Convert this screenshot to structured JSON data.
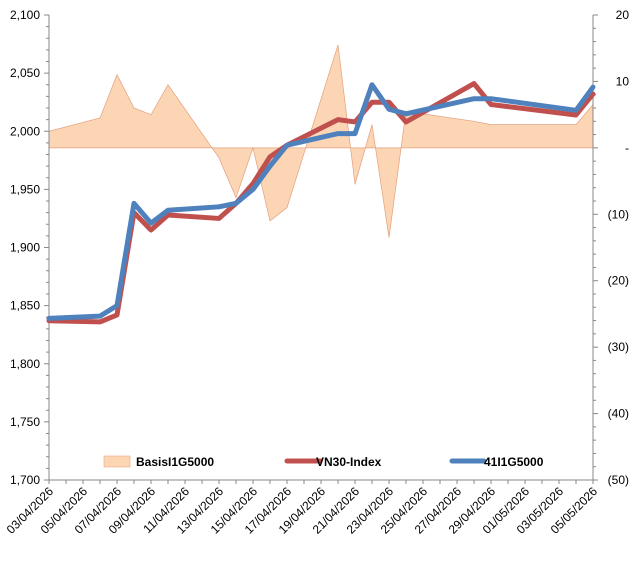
{
  "chart_data": {
    "type": "line",
    "x": [
      "03/04/2026",
      "06/04/2026",
      "07/04/2026",
      "08/04/2026",
      "09/04/2026",
      "10/04/2026",
      "13/04/2026",
      "14/04/2026",
      "15/04/2026",
      "16/04/2026",
      "17/04/2026",
      "20/04/2026",
      "21/04/2026",
      "22/04/2026",
      "23/04/2026",
      "24/04/2026",
      "28/04/2026",
      "29/04/2026",
      "04/05/2026",
      "05/05/2026"
    ],
    "x_tick_labels": [
      "03/04/2026",
      "05/04/2026",
      "07/04/2026",
      "09/04/2026",
      "11/04/2026",
      "13/04/2026",
      "15/04/2026",
      "17/04/2026",
      "19/04/2026",
      "21/04/2026",
      "23/04/2026",
      "25/04/2026",
      "27/04/2026",
      "29/04/2026",
      "01/05/2026",
      "03/05/2026",
      "05/05/2026"
    ],
    "series": [
      {
        "name": "BasisI1G5000",
        "axis": "right",
        "kind": "area",
        "color": "#fcd5b5",
        "values": [
          2.5,
          4.5,
          11.0,
          6.0,
          5.0,
          9.5,
          -1.5,
          -7.5,
          0.0,
          -11.0,
          -9.0,
          15.5,
          -5.5,
          3.5,
          -13.5,
          5.5,
          4.0,
          3.5,
          3.5,
          6.5
        ]
      },
      {
        "name": "VN30-Index",
        "axis": "left",
        "kind": "line",
        "color": "#c0504d",
        "values": [
          1837,
          1836,
          1842,
          1930,
          1915,
          1928,
          1925,
          1938,
          1955,
          1978,
          1988,
          2010,
          2008,
          2025,
          2025,
          2008,
          2041,
          2023,
          2014,
          2032
        ]
      },
      {
        "name": "41I1G5000",
        "axis": "left",
        "kind": "line",
        "color": "#4f81bd",
        "values": [
          1839,
          1841,
          1850,
          1938,
          1921,
          1932,
          1935,
          1938,
          1950,
          1970,
          1988,
          1998,
          1998,
          2040,
          2019,
          2015,
          2028,
          2028,
          2018,
          2038
        ]
      }
    ],
    "y_left": {
      "min": 1700,
      "max": 2100,
      "step": 50,
      "tick_labels": [
        "1,700",
        "1,750",
        "1,800",
        "1,850",
        "1,900",
        "1,950",
        "2,000",
        "2,050",
        "2,100"
      ]
    },
    "y_right": {
      "min": -50,
      "max": 20,
      "step": 10,
      "tick_labels": [
        "(50)",
        "(40)",
        "(30)",
        "(20)",
        "(10)",
        "-",
        "10",
        "20"
      ]
    },
    "grid": false,
    "legend": "bottom"
  }
}
